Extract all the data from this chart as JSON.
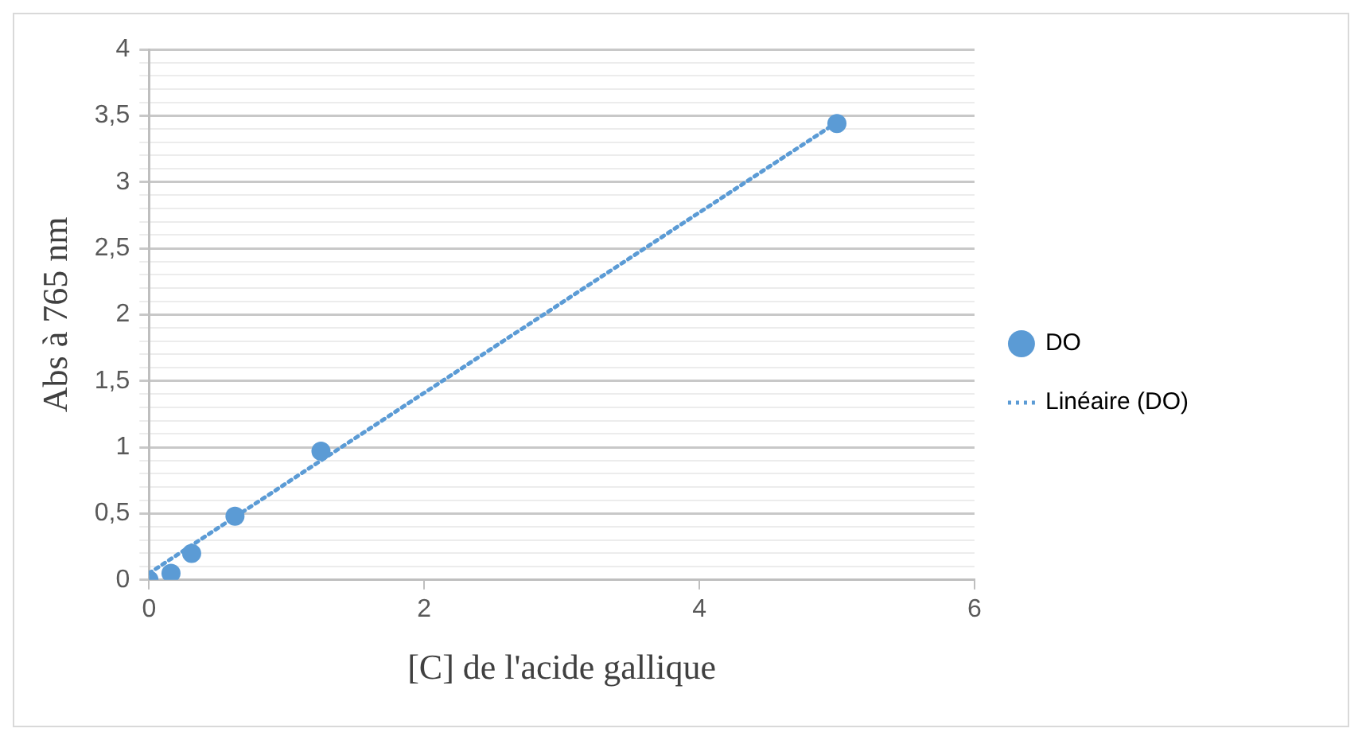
{
  "chart_data": {
    "type": "scatter",
    "xlabel": "[C] de l'acide gallique",
    "ylabel": "Abs à 765 nm",
    "series": [
      {
        "name": "DO",
        "color": "#5b9bd5",
        "x": [
          0,
          0.16,
          0.31,
          0.625,
          1.25,
          5
        ],
        "values": [
          0,
          0.05,
          0.2,
          0.48,
          0.97,
          3.44
        ],
        "marker": "circle"
      },
      {
        "name": "Linéaire (DO)",
        "type": "line",
        "color": "#5b9bd5",
        "x": [
          0,
          5
        ],
        "values": [
          0.05,
          3.45
        ],
        "marker": "none",
        "line_style": "dotted"
      }
    ],
    "xlim": [
      0,
      6
    ],
    "xticks": [
      0,
      2,
      4,
      6
    ],
    "ylim": [
      0,
      4
    ],
    "yticks": [
      {
        "value": 0,
        "label": "0"
      },
      {
        "value": 0.1,
        "label": null
      },
      {
        "value": 0.2,
        "label": null
      },
      {
        "value": 0.3,
        "label": null
      },
      {
        "value": 0.4,
        "label": null
      },
      {
        "value": 0.5,
        "label": "0,5"
      },
      {
        "value": 0.6,
        "label": null
      },
      {
        "value": 0.7,
        "label": null
      },
      {
        "value": 0.8,
        "label": null
      },
      {
        "value": 0.9,
        "label": null
      },
      {
        "value": 1,
        "label": "1"
      },
      {
        "value": 1.1,
        "label": null
      },
      {
        "value": 1.2,
        "label": null
      },
      {
        "value": 1.3,
        "label": null
      },
      {
        "value": 1.4,
        "label": null
      },
      {
        "value": 1.5,
        "label": "1,5"
      },
      {
        "value": 1.6,
        "label": null
      },
      {
        "value": 1.7,
        "label": null
      },
      {
        "value": 1.8,
        "label": null
      },
      {
        "value": 1.9,
        "label": null
      },
      {
        "value": 2,
        "label": "2"
      },
      {
        "value": 2.1,
        "label": null
      },
      {
        "value": 2.2,
        "label": null
      },
      {
        "value": 2.3,
        "label": null
      },
      {
        "value": 2.4,
        "label": null
      },
      {
        "value": 2.5,
        "label": "2,5"
      },
      {
        "value": 2.6,
        "label": null
      },
      {
        "value": 2.7,
        "label": null
      },
      {
        "value": 2.8,
        "label": null
      },
      {
        "value": 2.9,
        "label": null
      },
      {
        "value": 3,
        "label": "3"
      },
      {
        "value": 3.1,
        "label": null
      },
      {
        "value": 3.2,
        "label": null
      },
      {
        "value": 3.3,
        "label": null
      },
      {
        "value": 3.4,
        "label": null
      },
      {
        "value": 3.5,
        "label": "3,5"
      },
      {
        "value": 3.6,
        "label": null
      },
      {
        "value": 3.7,
        "label": null
      },
      {
        "value": 3.8,
        "label": null
      },
      {
        "value": 3.9,
        "label": null
      },
      {
        "value": 4,
        "label": "4"
      }
    ],
    "grid": "y",
    "legend": "right"
  }
}
